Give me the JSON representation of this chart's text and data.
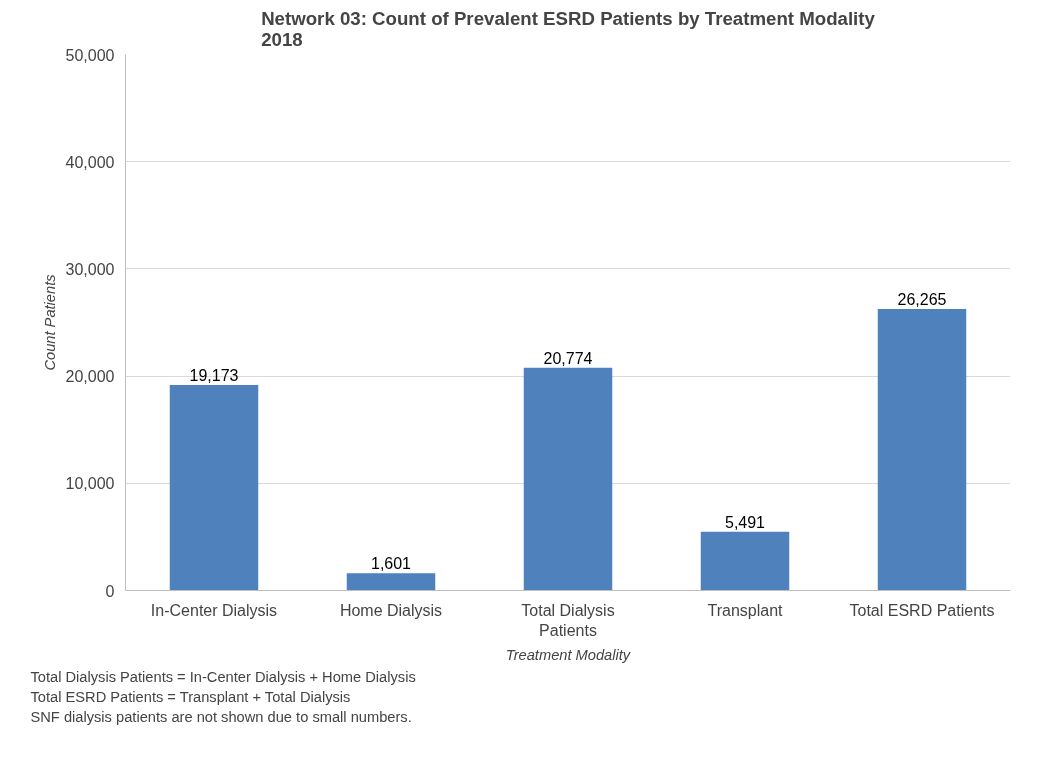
{
  "chart_data": {
    "type": "bar",
    "title": "Network 03: Count of Prevalent ESRD Patients by Treatment Modality\n2018",
    "xlabel": "Treatment Modality",
    "ylabel": "Count Patients",
    "categories": [
      "In-Center Dialysis",
      "Home Dialysis",
      "Total Dialysis Patients",
      "Transplant",
      "Total ESRD Patients"
    ],
    "values": [
      19173,
      1601,
      20774,
      5491,
      26265
    ],
    "color": "#4f81bd",
    "value_labels": [
      "19,173",
      "1,601",
      "20,774",
      "5,491",
      "26,265"
    ],
    "ylim": [
      0,
      50000
    ],
    "yticks": [
      0,
      {
        "value": 10000,
        "label": "10,000"
      },
      {
        "value": 20000,
        "label": "20,000"
      },
      {
        "value": 30000,
        "label": "30,000"
      },
      {
        "value": 40000,
        "label": "40,000"
      },
      {
        "value": 50000,
        "label": "50,000"
      }
    ],
    "grid": "y",
    "annotations": [
      "Total Dialysis Patients = In-Center Dialysis + Home Dialysis",
      "Total ESRD Patients = Transplant + Total Dialysis",
      "SNF dialysis patients are not shown due to small numbers."
    ]
  }
}
